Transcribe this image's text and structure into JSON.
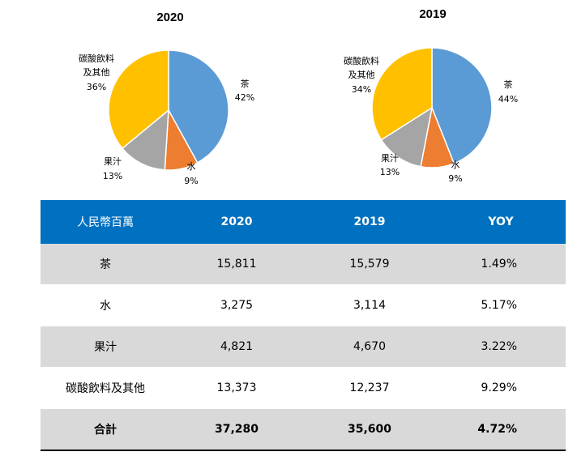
{
  "colors": {
    "tea": "#5b9bd5",
    "water": "#ed7d31",
    "juice": "#a5a5a5",
    "soda": "#ffc000",
    "table_header": "#0070c0",
    "row_shade": "#d9d9d9"
  },
  "chart_data": [
    {
      "type": "pie",
      "title": "2020",
      "slices": [
        {
          "name": "茶",
          "value": 42,
          "label": "42%"
        },
        {
          "name": "水",
          "value": 9,
          "label": "9%"
        },
        {
          "name": "果汁",
          "value": 13,
          "label": "13%"
        },
        {
          "name": "碳酸飲料及其他",
          "name_lines": [
            "碳酸飲料",
            "及其他"
          ],
          "value": 36,
          "label": "36%"
        }
      ]
    },
    {
      "type": "pie",
      "title": "2019",
      "slices": [
        {
          "name": "茶",
          "value": 44,
          "label": "44%"
        },
        {
          "name": "水",
          "value": 9,
          "label": "9%"
        },
        {
          "name": "果汁",
          "value": 13,
          "label": "13%"
        },
        {
          "name": "碳酸飲料及其他",
          "name_lines": [
            "碳酸飲料",
            "及其他"
          ],
          "value": 34,
          "label": "34%"
        }
      ]
    },
    {
      "type": "table",
      "columns": [
        "人民幣百萬",
        "2020",
        "2019",
        "YOY"
      ],
      "rows": [
        {
          "category": "茶",
          "y2020": "15,811",
          "y2019": "15,579",
          "yoy": "1.49%"
        },
        {
          "category": "水",
          "y2020": "3,275",
          "y2019": "3,114",
          "yoy": "5.17%"
        },
        {
          "category": "果汁",
          "y2020": "4,821",
          "y2019": "4,670",
          "yoy": "3.22%"
        },
        {
          "category": "碳酸飲料及其他",
          "y2020": "13,373",
          "y2019": "12,237",
          "yoy": "9.29%"
        }
      ],
      "total": {
        "category": "合計",
        "y2020": "37,280",
        "y2019": "35,600",
        "yoy": "4.72%"
      }
    }
  ]
}
